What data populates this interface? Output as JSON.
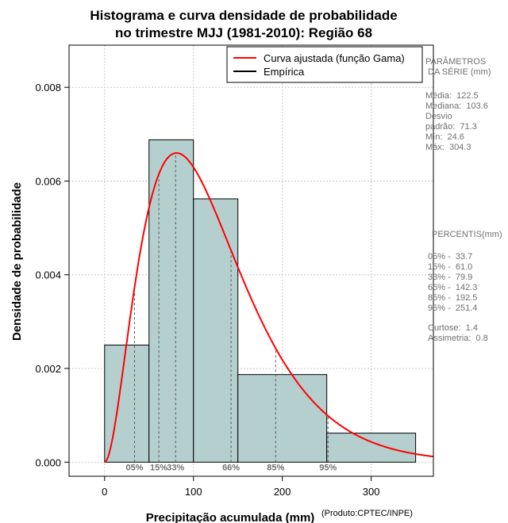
{
  "chart_data": {
    "type": "bar",
    "title_line1": "Histograma e curva densidade de probabilidade",
    "title_line2": "no trimestre MJJ (1981-2010): Região 68",
    "xlabel": "Precipitação acumulada (mm)",
    "ylabel": "Densidade de probabilidade",
    "credit": "(Produto:CPTEC/INPE)",
    "xlim": [
      -40,
      370
    ],
    "ylim": [
      -0.0003,
      0.0089
    ],
    "xticks": [
      0,
      100,
      200,
      300
    ],
    "yticks": [
      0.0,
      0.002,
      0.004,
      0.006,
      0.008
    ],
    "ytick_labels": [
      "0.000",
      "0.002",
      "0.004",
      "0.006",
      "0.008"
    ],
    "grid": true,
    "bins": [
      {
        "x0": 0,
        "x1": 50,
        "density": 0.0025
      },
      {
        "x0": 50,
        "x1": 100,
        "density": 0.00688
      },
      {
        "x0": 100,
        "x1": 150,
        "density": 0.00562
      },
      {
        "x0": 150,
        "x1": 250,
        "density": 0.00187
      },
      {
        "x0": 250,
        "x1": 350,
        "density": 0.00062
      }
    ],
    "bar_color": "#b5cfcf",
    "curve_color": "#ff0000",
    "gamma_fit": {
      "shape": 2.95,
      "scale": 41.5
    },
    "legend": [
      {
        "label": "Curva ajustada (função Gama)",
        "color": "#ff0000"
      },
      {
        "label": "Empírica",
        "color": "#000000"
      }
    ],
    "percentile_lines": [
      {
        "label": "05%",
        "value": 33.7
      },
      {
        "label": "15%",
        "value": 61.0
      },
      {
        "label": "33%",
        "value": 79.9
      },
      {
        "label": "66%",
        "value": 142.3
      },
      {
        "label": "85%",
        "value": 192.5
      },
      {
        "label": "95%",
        "value": 251.4
      }
    ]
  },
  "side_panel": {
    "params_title": "PARÂMETROS\n DA SÉRIE (mm)",
    "params_body": "Média:  122.5\nMediana:  103.6\nDesvio\npadrão:  71.3\nMín:  24.6\nMáx:  304.3",
    "percentis_title": "PERCENTIS(mm)",
    "percentis_body": "05% -  33.7\n15% -  61.0\n33% -  79.9\n66% -  142.3\n85% -  192.5\n95% -  251.4\n\nCurtose:  1.4\nAssimetria:  0.8"
  }
}
